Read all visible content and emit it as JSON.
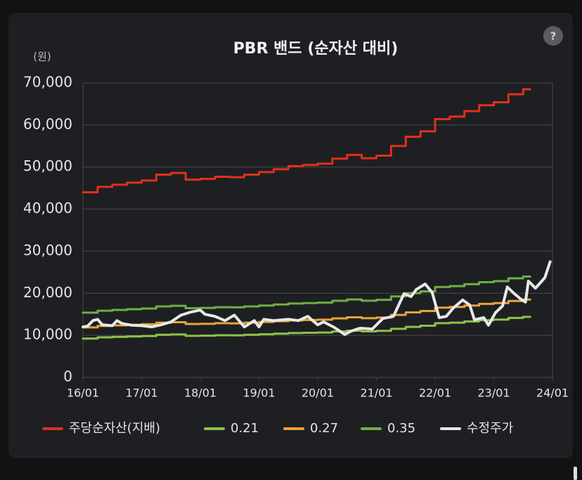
{
  "chart_data": {
    "type": "line",
    "title": "PBR 밴드 (순자산 대비)",
    "y_label": "(원)",
    "help": "?",
    "xlim": [
      2016,
      2024
    ],
    "xticks": [
      {
        "value": 2016,
        "label": "16/01"
      },
      {
        "value": 2017,
        "label": "17/01"
      },
      {
        "value": 2018,
        "label": "18/01"
      },
      {
        "value": 2019,
        "label": "19/01"
      },
      {
        "value": 2020,
        "label": "20/01"
      },
      {
        "value": 2021,
        "label": "21/01"
      },
      {
        "value": 2022,
        "label": "22/01"
      },
      {
        "value": 2023,
        "label": "23/01"
      },
      {
        "value": 2024,
        "label": "24/01"
      }
    ],
    "ylim": [
      0,
      70000
    ],
    "yticks": [
      0,
      {
        "value": 10000,
        "label": "10,000"
      },
      {
        "value": 20000,
        "label": "20,000"
      },
      {
        "value": 30000,
        "label": "30,000"
      },
      {
        "value": 40000,
        "label": "40,000"
      },
      {
        "value": 50000,
        "label": "50,000"
      },
      {
        "value": 60000,
        "label": "60,000"
      },
      {
        "value": 70000,
        "label": "70,000"
      }
    ],
    "grid": true,
    "legend": "bottom",
    "series": [
      {
        "name": "주당순자산(지배)",
        "color": "#e0301e",
        "step": true,
        "x": [
          2016,
          2016.25,
          2016.5,
          2016.75,
          2017,
          2017.25,
          2017.5,
          2017.75,
          2018,
          2018.25,
          2018.5,
          2018.75,
          2019,
          2019.25,
          2019.5,
          2019.75,
          2020,
          2020.25,
          2020.5,
          2020.75,
          2021,
          2021.25,
          2021.5,
          2021.75,
          2022,
          2022.25,
          2022.5,
          2022.75,
          2023,
          2023.25,
          2023.5,
          2023.62
        ],
        "values": [
          44000,
          45300,
          45800,
          46300,
          46800,
          48200,
          48600,
          47000,
          47200,
          47700,
          47600,
          48200,
          48800,
          49500,
          50200,
          50500,
          50800,
          52000,
          52900,
          52100,
          52700,
          55000,
          57200,
          58500,
          61400,
          62000,
          63300,
          64700,
          65400,
          67300,
          68500,
          68500
        ]
      },
      {
        "name": "0.21",
        "color": "#8bc34a",
        "step": true,
        "x": [
          2016,
          2016.25,
          2016.5,
          2016.75,
          2017,
          2017.25,
          2017.5,
          2017.75,
          2018,
          2018.25,
          2018.5,
          2018.75,
          2019,
          2019.25,
          2019.5,
          2019.75,
          2020,
          2020.25,
          2020.5,
          2020.75,
          2021,
          2021.25,
          2021.5,
          2021.75,
          2022,
          2022.25,
          2022.5,
          2022.75,
          2023,
          2023.25,
          2023.5,
          2023.62
        ],
        "values": [
          9240,
          9513,
          9618,
          9723,
          9828,
          10122,
          10206,
          9870,
          9912,
          10017,
          9996,
          10122,
          10248,
          10395,
          10542,
          10605,
          10668,
          10920,
          11109,
          10941,
          11067,
          11550,
          12012,
          12285,
          12894,
          13020,
          13293,
          13587,
          13734,
          14133,
          14385,
          14385
        ]
      },
      {
        "name": "0.27",
        "color": "#e8a33a",
        "step": true,
        "x": [
          2016,
          2016.25,
          2016.5,
          2016.75,
          2017,
          2017.25,
          2017.5,
          2017.75,
          2018,
          2018.25,
          2018.5,
          2018.75,
          2019,
          2019.25,
          2019.5,
          2019.75,
          2020,
          2020.25,
          2020.5,
          2020.75,
          2021,
          2021.25,
          2021.5,
          2021.75,
          2022,
          2022.25,
          2022.5,
          2022.75,
          2023,
          2023.25,
          2023.5,
          2023.62
        ],
        "values": [
          11880,
          12231,
          12366,
          12501,
          12636,
          13014,
          13122,
          12690,
          12744,
          12879,
          12852,
          13014,
          13176,
          13365,
          13554,
          13635,
          13716,
          14040,
          14283,
          14067,
          14229,
          14850,
          15444,
          15795,
          16578,
          16740,
          17091,
          17469,
          17658,
          18171,
          18495,
          18495
        ]
      },
      {
        "name": "0.35",
        "color": "#6fae45",
        "step": true,
        "x": [
          2016,
          2016.25,
          2016.5,
          2016.75,
          2017,
          2017.25,
          2017.5,
          2017.75,
          2018,
          2018.25,
          2018.5,
          2018.75,
          2019,
          2019.25,
          2019.5,
          2019.75,
          2020,
          2020.25,
          2020.5,
          2020.75,
          2021,
          2021.25,
          2021.5,
          2021.75,
          2022,
          2022.25,
          2022.5,
          2022.75,
          2023,
          2023.25,
          2023.5,
          2023.62
        ],
        "values": [
          15400,
          15855,
          16030,
          16205,
          16380,
          16870,
          17010,
          16450,
          16520,
          16695,
          16660,
          16870,
          17080,
          17325,
          17570,
          17675,
          17780,
          18200,
          18515,
          18235,
          18445,
          19250,
          20020,
          20475,
          21490,
          21700,
          22155,
          22645,
          22890,
          23555,
          23975,
          23975
        ]
      },
      {
        "name": "수정주가",
        "color": "#e8e8e8",
        "width": 4,
        "x": [
          2016,
          2016.08,
          2016.17,
          2016.25,
          2016.33,
          2016.5,
          2016.58,
          2016.67,
          2016.83,
          2017,
          2017.17,
          2017.33,
          2017.5,
          2017.67,
          2017.83,
          2018,
          2018.08,
          2018.25,
          2018.42,
          2018.58,
          2018.75,
          2018.92,
          2019,
          2019.08,
          2019.25,
          2019.5,
          2019.67,
          2019.83,
          2020,
          2020.1,
          2020.28,
          2020.46,
          2020.57,
          2020.72,
          2020.93,
          2021.11,
          2021.29,
          2021.47,
          2021.59,
          2021.68,
          2021.83,
          2021.95,
          2022.07,
          2022.19,
          2022.31,
          2022.47,
          2022.59,
          2022.67,
          2022.83,
          2022.91,
          2023.03,
          2023.15,
          2023.23,
          2023.35,
          2023.47,
          2023.54,
          2023.59,
          2023.71,
          2023.87,
          2023.96
        ],
        "values": [
          12000,
          12200,
          13500,
          13800,
          12500,
          12300,
          13500,
          12800,
          12400,
          12300,
          12000,
          12500,
          13200,
          14800,
          15500,
          16000,
          15000,
          14500,
          13500,
          14800,
          12000,
          13500,
          12000,
          13800,
          13500,
          13800,
          13500,
          14500,
          12500,
          13200,
          11900,
          10200,
          11000,
          11700,
          11500,
          14000,
          14500,
          19900,
          19200,
          20900,
          22200,
          20200,
          14200,
          14500,
          16500,
          18400,
          17200,
          13700,
          14200,
          12400,
          15400,
          17000,
          21500,
          19900,
          18500,
          17900,
          22900,
          21200,
          23700,
          27500
        ]
      }
    ]
  }
}
